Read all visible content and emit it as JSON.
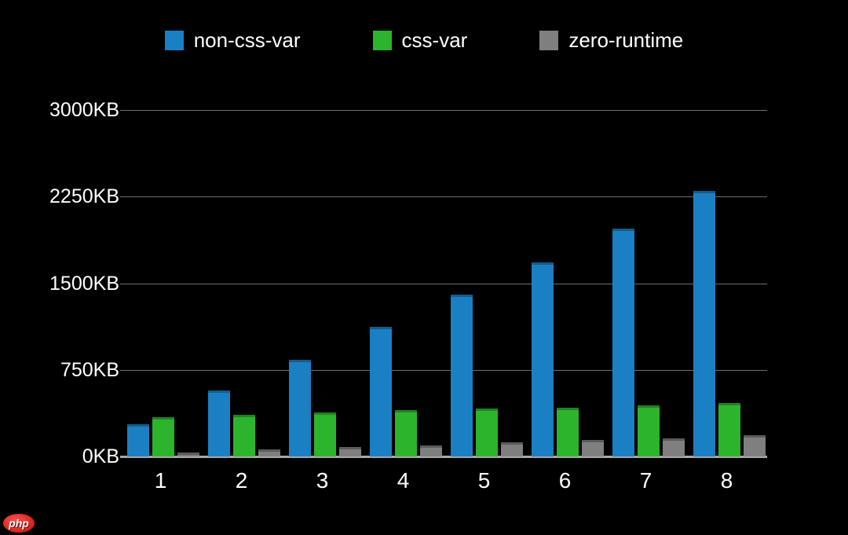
{
  "page": {
    "background_color": "#000000"
  },
  "legend": {
    "position": "top",
    "items": [
      {
        "label": "non-css-var",
        "color": "#1b80c3"
      },
      {
        "label": "css-var",
        "color": "#2db42d"
      },
      {
        "label": "zero-runtime",
        "color": "#7f7f7f"
      }
    ]
  },
  "chart_data": {
    "type": "bar",
    "title": "",
    "xlabel": "",
    "ylabel": "",
    "unit": "KB",
    "categories": [
      "1",
      "2",
      "3",
      "4",
      "5",
      "6",
      "7",
      "8"
    ],
    "series": [
      {
        "name": "non-css-var",
        "color": "#1b80c3",
        "values": [
          280,
          570,
          835,
          1120,
          1400,
          1680,
          1970,
          2300
        ]
      },
      {
        "name": "css-var",
        "color": "#2db42d",
        "values": [
          340,
          360,
          380,
          400,
          415,
          425,
          445,
          465
        ]
      },
      {
        "name": "zero-runtime",
        "color": "#7f7f7f",
        "values": [
          35,
          60,
          80,
          95,
          120,
          140,
          155,
          185
        ]
      }
    ],
    "ylim": [
      0,
      3000
    ],
    "yticks": [
      {
        "value": 0,
        "label": "0KB"
      },
      {
        "value": 750,
        "label": "750KB"
      },
      {
        "value": 1500,
        "label": "1500KB"
      },
      {
        "value": 2250,
        "label": "2250KB"
      },
      {
        "value": 3000,
        "label": "3000KB"
      }
    ],
    "grid": true,
    "legend_position": "top"
  },
  "axis_style": {
    "grid_color": "#6e6e6e",
    "baseline_color": "#a8a8a8",
    "text_color": "#ffffff"
  },
  "watermark": {
    "text": "php",
    "bg_color": "#e02a24"
  }
}
